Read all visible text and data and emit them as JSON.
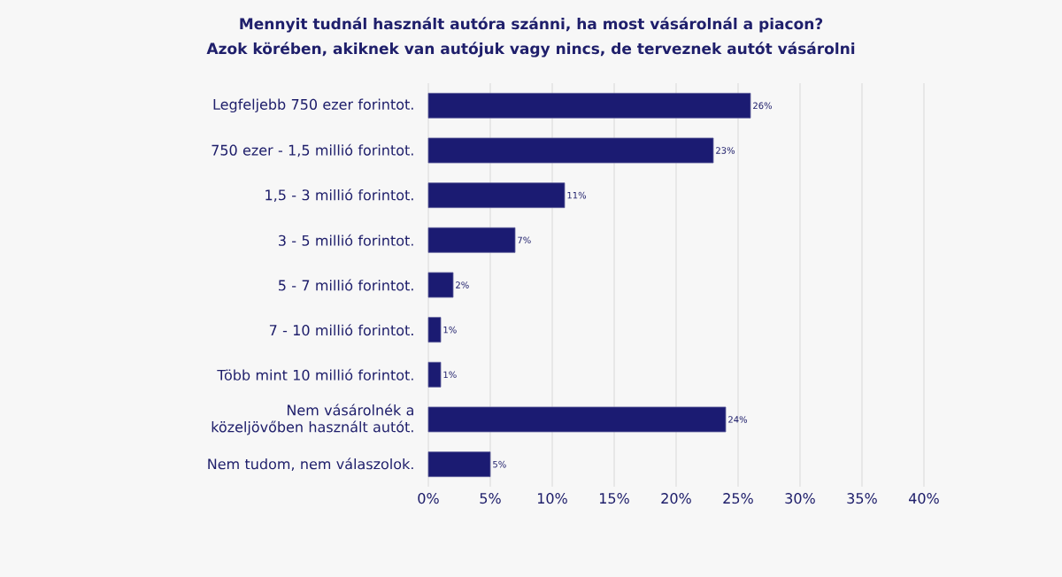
{
  "chart_data": {
    "type": "bar",
    "orientation": "horizontal",
    "title": "Mennyit tudnál használt autóra szánni, ha most vásárolnál a piacon?",
    "subtitle": "Azok körében, akiknek van autójuk vagy nincs, de terveznek autót vásárolni",
    "categories": [
      "Legfeljebb 750 ezer forintot.",
      "750 ezer - 1,5 millió forintot.",
      "1,5 - 3 millió forintot.",
      "3 - 5 millió forintot.",
      "5 - 7 millió forintot.",
      "7 - 10 millió forintot.",
      "Több mint 10 millió forintot.",
      "Nem vásárolnék a közeljövőben használt autót.",
      "Nem tudom, nem válaszolok."
    ],
    "values": [
      26,
      23,
      11,
      7,
      2,
      1,
      1,
      24,
      5
    ],
    "value_labels": [
      "26%",
      "23%",
      "11%",
      "7%",
      "2%",
      "1%",
      "1%",
      "24%",
      "5%"
    ],
    "color": "#1b1b72",
    "xlim": [
      0,
      40
    ],
    "xticks": [
      {
        "value": 0,
        "label": "0%"
      },
      {
        "value": 5,
        "label": "5%"
      },
      {
        "value": 10,
        "label": "10%"
      },
      {
        "value": 15,
        "label": "15%"
      },
      {
        "value": 20,
        "label": "20%"
      },
      {
        "value": 25,
        "label": "25%"
      },
      {
        "value": 30,
        "label": "30%"
      },
      {
        "value": 35,
        "label": "35%"
      },
      {
        "value": 40,
        "label": "40%"
      }
    ],
    "grid": "x"
  }
}
